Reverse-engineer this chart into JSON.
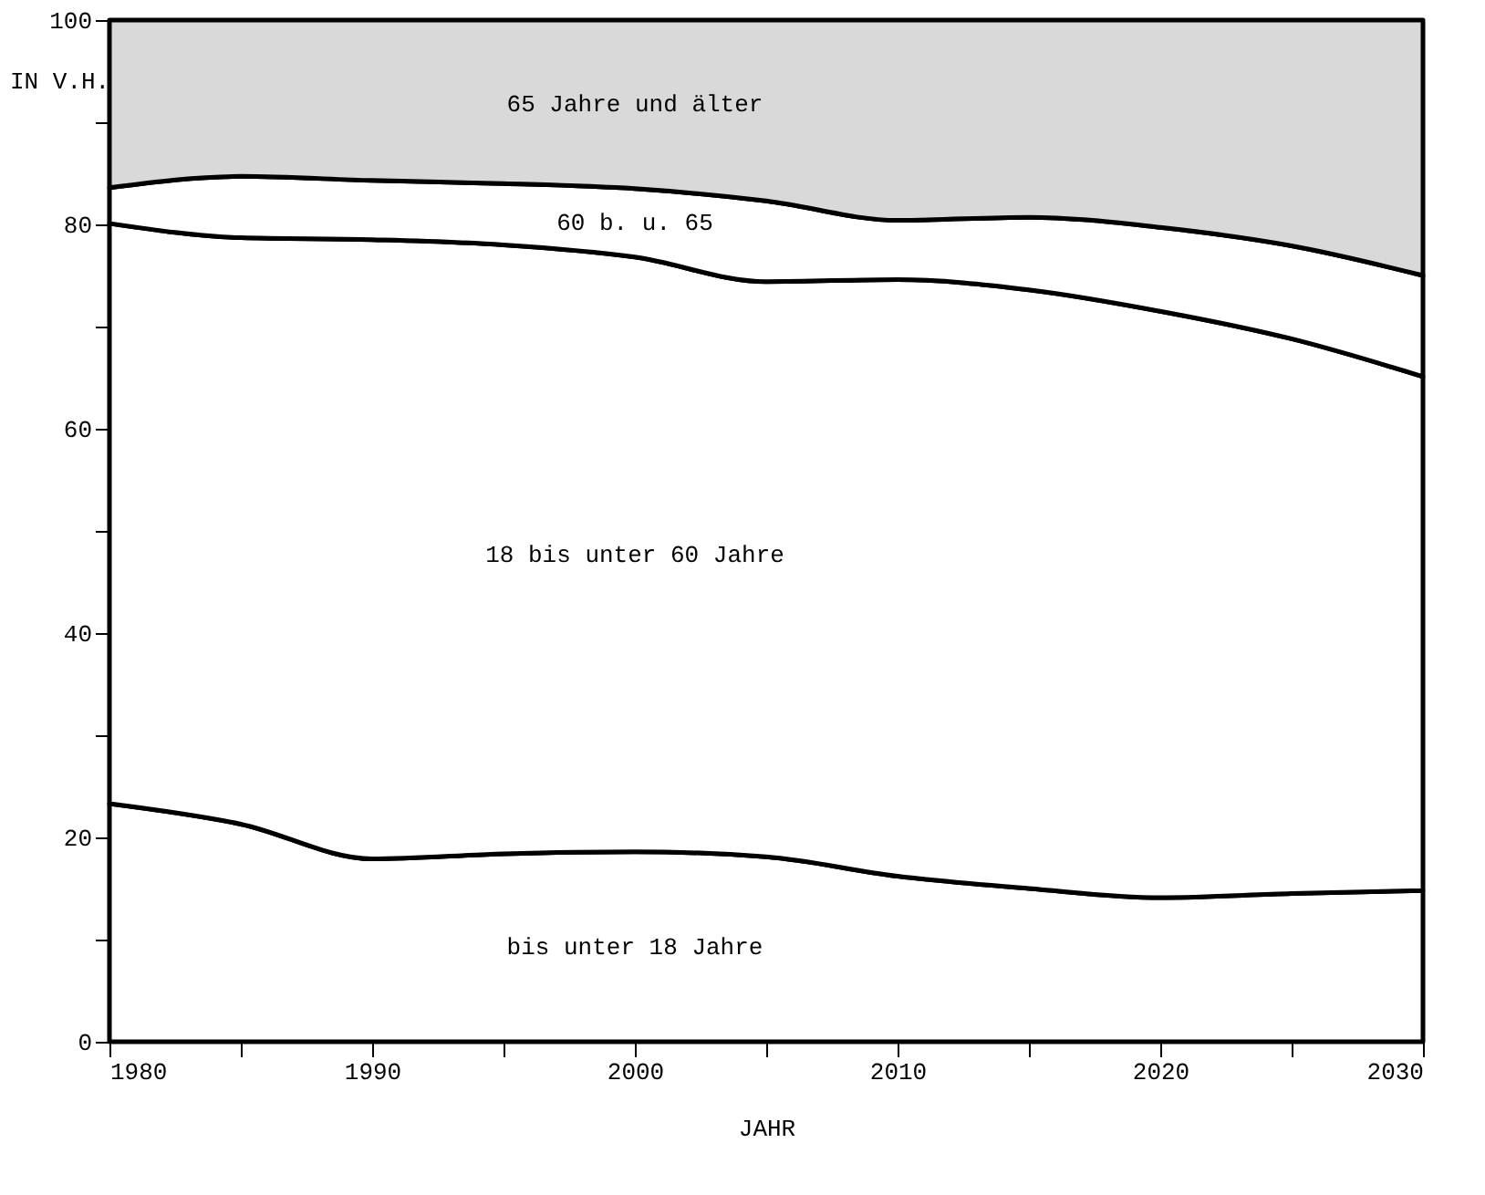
{
  "chart_data": {
    "type": "area",
    "stacked": true,
    "xlabel": "JAHR",
    "ylabel": "IN V.H.",
    "x": [
      1980,
      1985,
      1990,
      1995,
      2000,
      2005,
      2010,
      2015,
      2020,
      2025,
      2030
    ],
    "series": [
      {
        "name": "bis unter 18 Jahre",
        "color": "#ffffff",
        "values": [
          23.3,
          21.3,
          17.9,
          18.4,
          18.6,
          18.1,
          16.2,
          15.0,
          14.1,
          14.5,
          14.8
        ]
      },
      {
        "name": "18 bis unter 60 Jahre",
        "color": "#ffffff",
        "values": [
          56.8,
          57.4,
          60.6,
          59.6,
          58.2,
          56.3,
          58.4,
          58.6,
          57.4,
          54.3,
          50.3
        ]
      },
      {
        "name": "60 b. u. 65",
        "color": "#ffffff",
        "values": [
          3.5,
          6.0,
          5.8,
          6.0,
          6.7,
          7.9,
          5.8,
          7.1,
          8.2,
          9.1,
          9.9
        ]
      },
      {
        "name": "65 Jahre und älter",
        "color": "#d9d9d9",
        "values": [
          16.4,
          15.3,
          15.7,
          16.0,
          16.5,
          17.7,
          19.6,
          19.3,
          20.3,
          22.1,
          25.0
        ]
      }
    ],
    "xlim": [
      1980,
      2030
    ],
    "xticks": [
      1980,
      {
        "value": 1985,
        "label": null
      },
      1990,
      {
        "value": 1995,
        "label": null
      },
      2000,
      {
        "value": 2005,
        "label": null
      },
      2010,
      {
        "value": 2015,
        "label": null
      },
      2020,
      {
        "value": 2025,
        "label": null
      },
      2030
    ],
    "ylim": [
      0,
      100
    ],
    "yticks": [
      0,
      {
        "value": 10,
        "label": null
      },
      20,
      {
        "value": 30,
        "label": null
      },
      40,
      {
        "value": 50,
        "label": null
      },
      60,
      {
        "value": 70,
        "label": null
      },
      80,
      {
        "value": 90,
        "label": null
      },
      100
    ],
    "legend": false
  }
}
